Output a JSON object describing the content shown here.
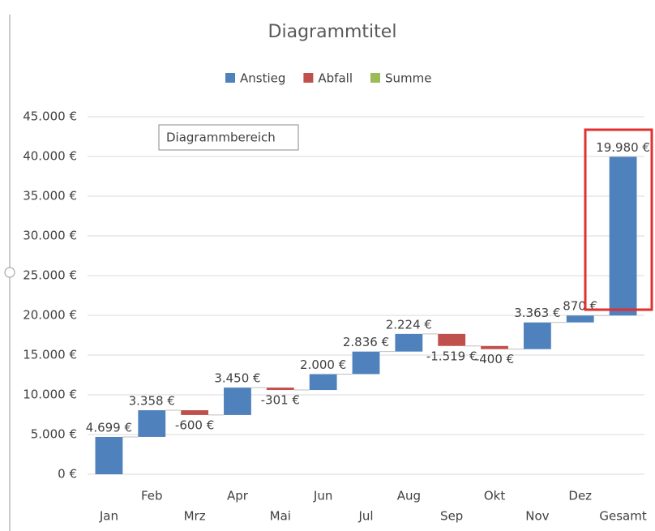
{
  "chart_data": {
    "type": "waterfall",
    "title": "Diagrammtitel",
    "annotation": "Diagrammbereich",
    "legend": [
      {
        "name": "Anstieg",
        "color": "#4f81bd"
      },
      {
        "name": "Abfall",
        "color": "#c0504d"
      },
      {
        "name": "Summe",
        "color": "#9bbb59"
      }
    ],
    "categories": [
      "Jan",
      "Feb",
      "Mrz",
      "Apr",
      "Mai",
      "Jun",
      "Jul",
      "Aug",
      "Sep",
      "Okt",
      "Nov",
      "Dez",
      "Gesamt"
    ],
    "values": [
      4699,
      3358,
      -600,
      3450,
      -301,
      2000,
      2836,
      2224,
      -1519,
      -400,
      3363,
      870,
      19980
    ],
    "value_labels": [
      "4.699 €",
      "3.358 €",
      "-600 €",
      "3.450 €",
      "-301 €",
      "2.000 €",
      "2.836 €",
      "2.224 €",
      "-1.519 €",
      "-400 €",
      "3.363 €",
      "870 €",
      "19.980 €"
    ],
    "ylim": [
      0,
      45000
    ],
    "yticks": [
      {
        "value": 0,
        "label": "0 €"
      },
      {
        "value": 5000,
        "label": "5.000 €"
      },
      {
        "value": 10000,
        "label": "10.000 €"
      },
      {
        "value": 15000,
        "label": "15.000 €"
      },
      {
        "value": 20000,
        "label": "20.000 €"
      },
      {
        "value": 25000,
        "label": "25.000 €"
      },
      {
        "value": 30000,
        "label": "30.000 €"
      },
      {
        "value": 35000,
        "label": "35.000 €"
      },
      {
        "value": 40000,
        "label": "40.000 €"
      },
      {
        "value": 45000,
        "label": "45.000 €"
      }
    ],
    "grid": true
  }
}
